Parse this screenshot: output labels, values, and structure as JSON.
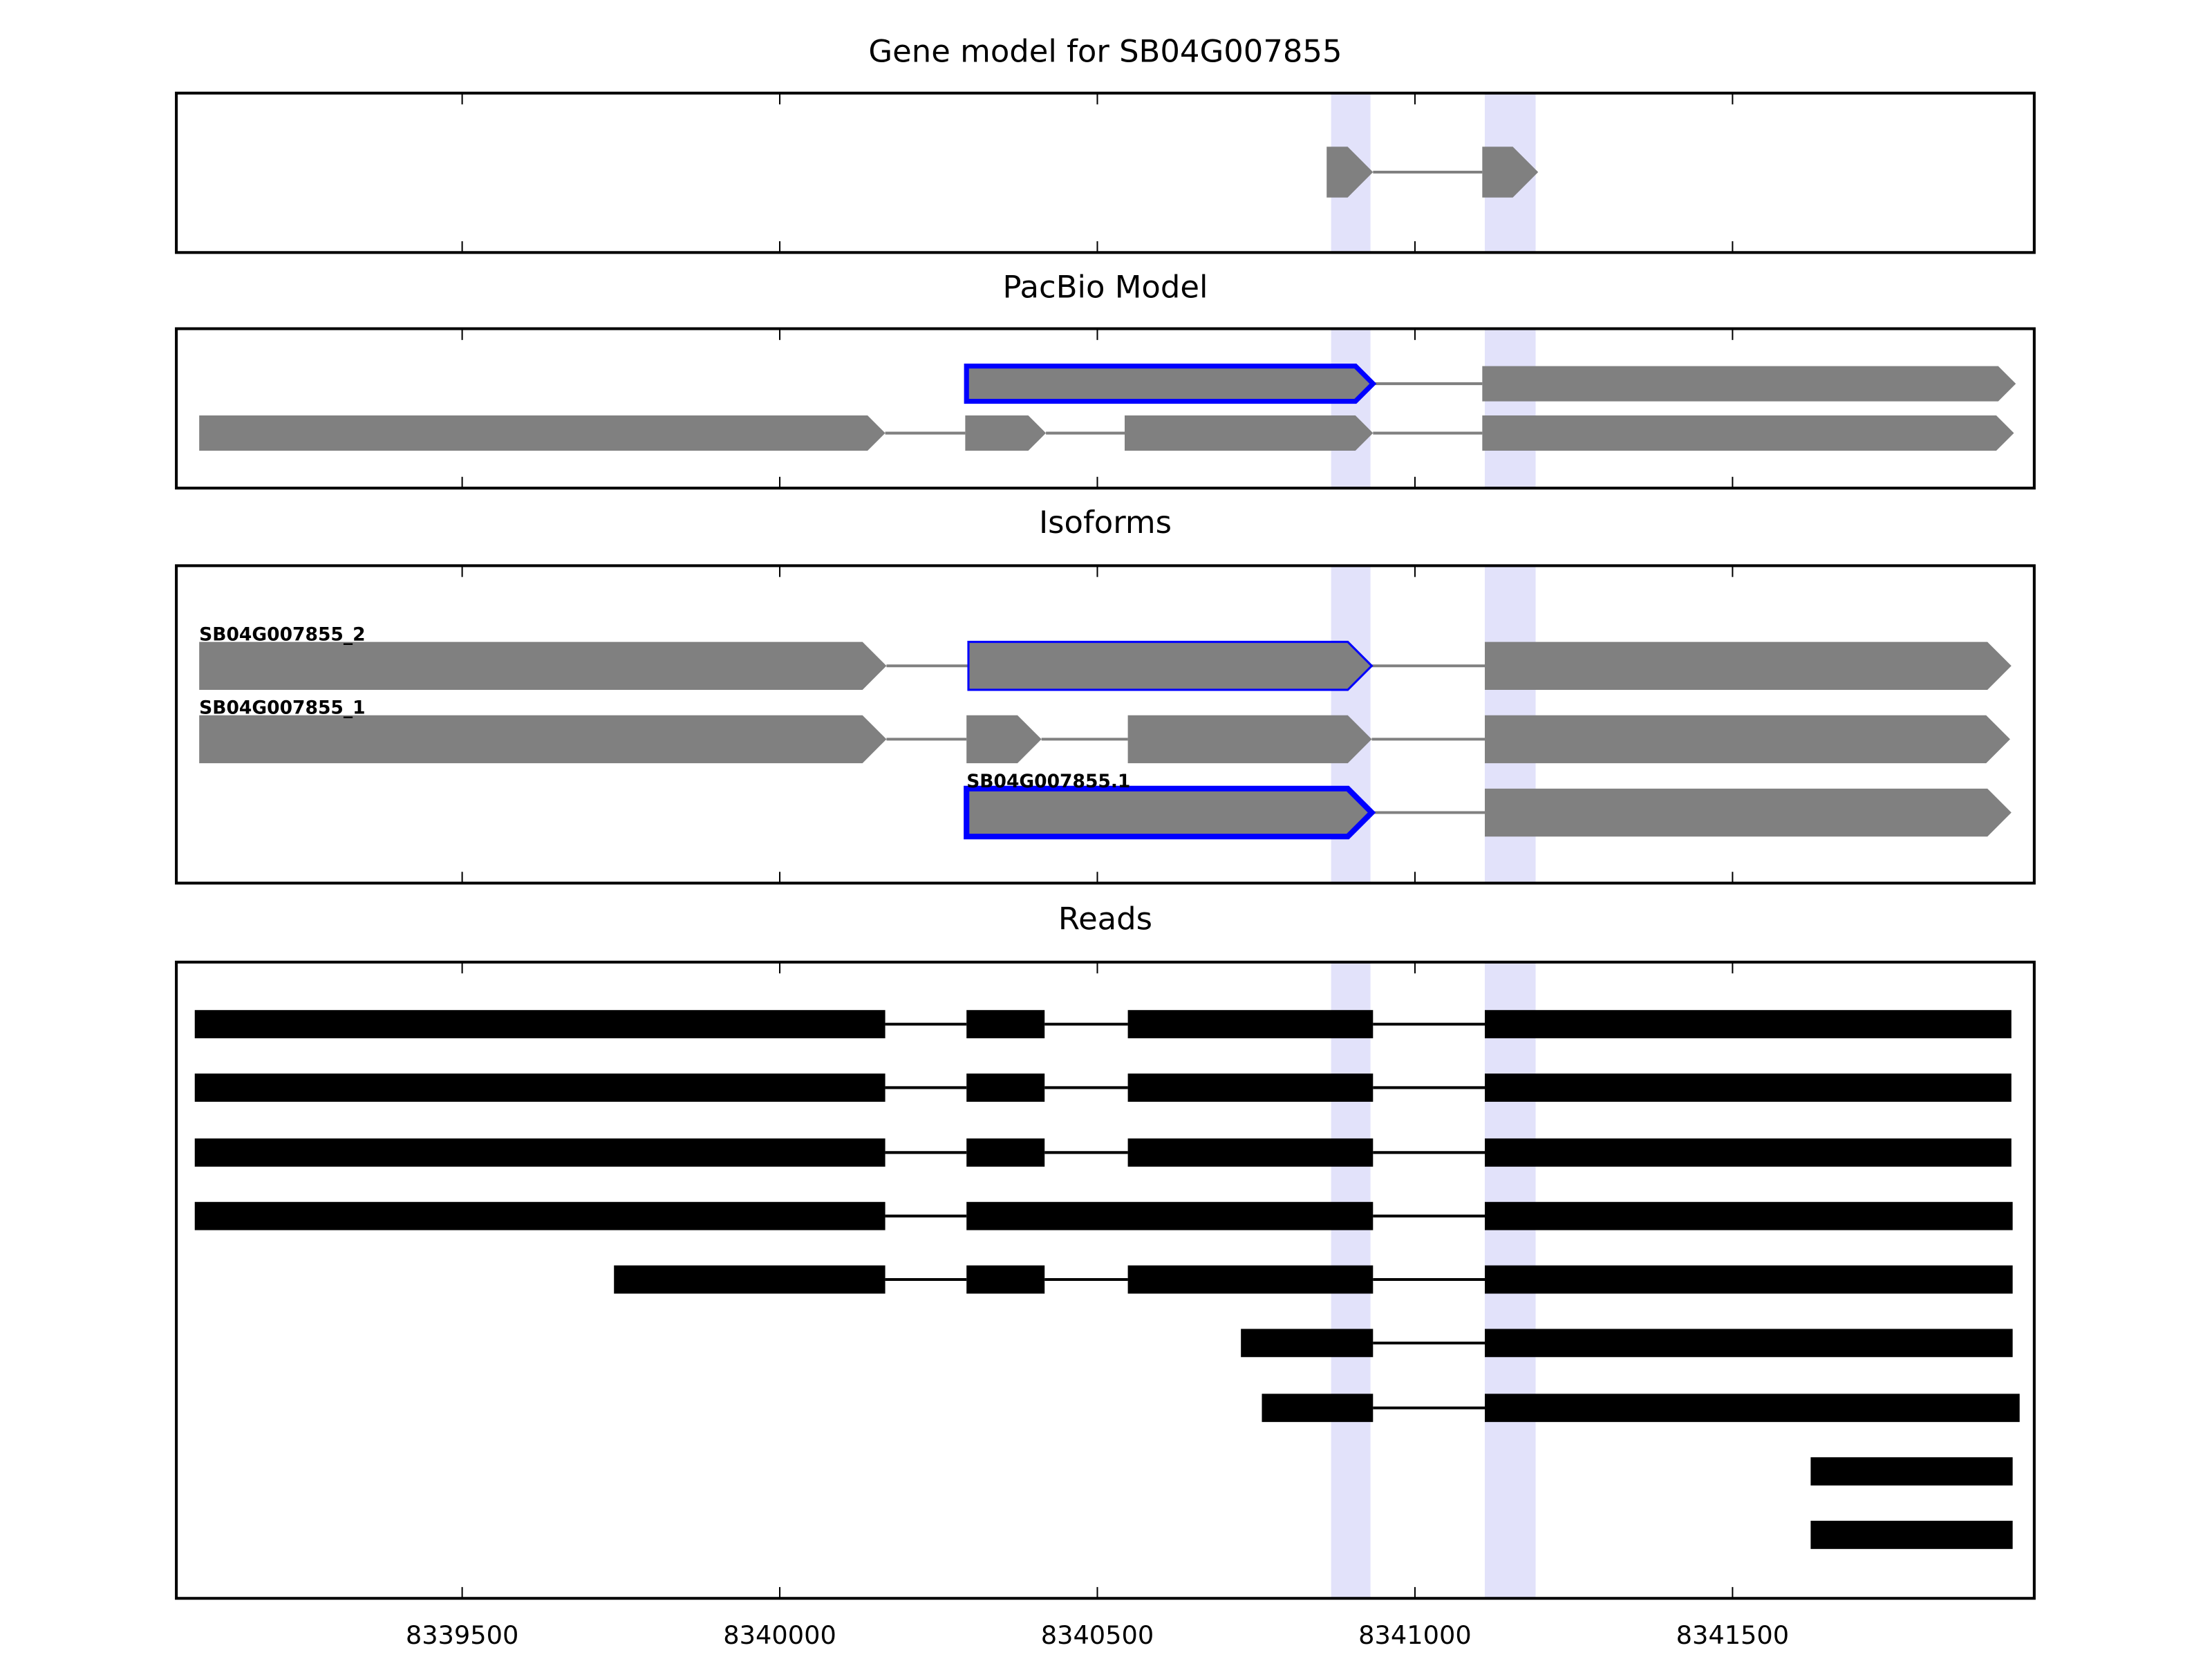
{
  "chart_data": [
    {
      "type": "gene-track",
      "title": "Gene model for SB04G007855",
      "xlim": [
        8339050,
        8341975
      ],
      "highlights": [
        [
          8340868,
          8340930
        ],
        [
          8341110,
          8341190
        ]
      ],
      "highlight_color": "#e2e2fa",
      "color": "#808080",
      "shape": "arrow",
      "tracks": [
        {
          "exons": [
            [
              8340861,
              8340934
            ],
            [
              8341106,
              8341194
            ]
          ]
        }
      ]
    },
    {
      "type": "gene-track",
      "title": "PacBio Model",
      "xlim": [
        8339050,
        8341975
      ],
      "highlights": [
        [
          8340868,
          8340930
        ],
        [
          8341110,
          8341190
        ]
      ],
      "highlight_color": "#e2e2fa",
      "color": "#808080",
      "shape": "arrow",
      "tracks": [
        {
          "exons": [
            [
              8340294,
              8340934
            ],
            [
              8341106,
              8341946
            ]
          ],
          "outline": {
            "exon": 0,
            "color": "#0000ff",
            "width": 3.5
          }
        },
        {
          "exons": [
            [
              8339086,
              8340166
            ],
            [
              8340292,
              8340419
            ],
            [
              8340543,
              8340934
            ],
            [
              8341106,
              8341943
            ]
          ]
        }
      ]
    },
    {
      "type": "gene-track",
      "title": "Isoforms",
      "xlim": [
        8339050,
        8341975
      ],
      "highlights": [
        [
          8340868,
          8340930
        ],
        [
          8341110,
          8341190
        ]
      ],
      "highlight_color": "#e2e2fa",
      "color": "#808080",
      "shape": "arrow",
      "tracks": [
        {
          "label": "SB04G007855_2",
          "exons": [
            [
              8339086,
              8340168
            ],
            [
              8340297,
              8340932
            ],
            [
              8341110,
              8341939
            ]
          ],
          "outline": {
            "exon": 1,
            "color": "#0000ff",
            "width": 1.5
          }
        },
        {
          "label": "SB04G007855_1",
          "exons": [
            [
              8339086,
              8340168
            ],
            [
              8340294,
              8340412
            ],
            [
              8340548,
              8340932
            ],
            [
              8341110,
              8341937
            ]
          ]
        },
        {
          "label": "SB04G007855.1",
          "exons": [
            [
              8340294,
              8340932
            ],
            [
              8341110,
              8341939
            ]
          ],
          "outline": {
            "exon": 0,
            "color": "#0000ff",
            "width": 4
          }
        }
      ]
    },
    {
      "type": "gene-track",
      "title": "Reads",
      "xlim": [
        8339050,
        8341975
      ],
      "highlights": [
        [
          8340868,
          8340930
        ],
        [
          8341110,
          8341190
        ]
      ],
      "highlight_color": "#e2e2fa",
      "color": "#000000",
      "shape": "rect",
      "xticks": [
        8339500,
        8340000,
        8340500,
        8341000,
        8341500
      ],
      "tracks": [
        {
          "exons": [
            [
              8339079,
              8340166
            ],
            [
              8340294,
              8340417
            ],
            [
              8340548,
              8340934
            ],
            [
              8341110,
              8341939
            ]
          ]
        },
        {
          "exons": [
            [
              8339079,
              8340166
            ],
            [
              8340294,
              8340417
            ],
            [
              8340548,
              8340934
            ],
            [
              8341110,
              8341939
            ]
          ]
        },
        {
          "exons": [
            [
              8339079,
              8340166
            ],
            [
              8340294,
              8340417
            ],
            [
              8340548,
              8340934
            ],
            [
              8341110,
              8341939
            ]
          ]
        },
        {
          "exons": [
            [
              8339079,
              8340166
            ],
            [
              8340294,
              8340934
            ],
            [
              8341110,
              8341941
            ]
          ]
        },
        {
          "exons": [
            [
              8339739,
              8340166
            ],
            [
              8340294,
              8340417
            ],
            [
              8340548,
              8340934
            ],
            [
              8341110,
              8341941
            ]
          ]
        },
        {
          "exons": [
            [
              8340726,
              8340934
            ],
            [
              8341110,
              8341941
            ]
          ]
        },
        {
          "exons": [
            [
              8340759,
              8340934
            ],
            [
              8341110,
              8341952
            ]
          ]
        },
        {
          "exons": [
            [
              8341623,
              8341941
            ]
          ]
        },
        {
          "exons": [
            [
              8341623,
              8341941
            ]
          ]
        }
      ]
    }
  ]
}
